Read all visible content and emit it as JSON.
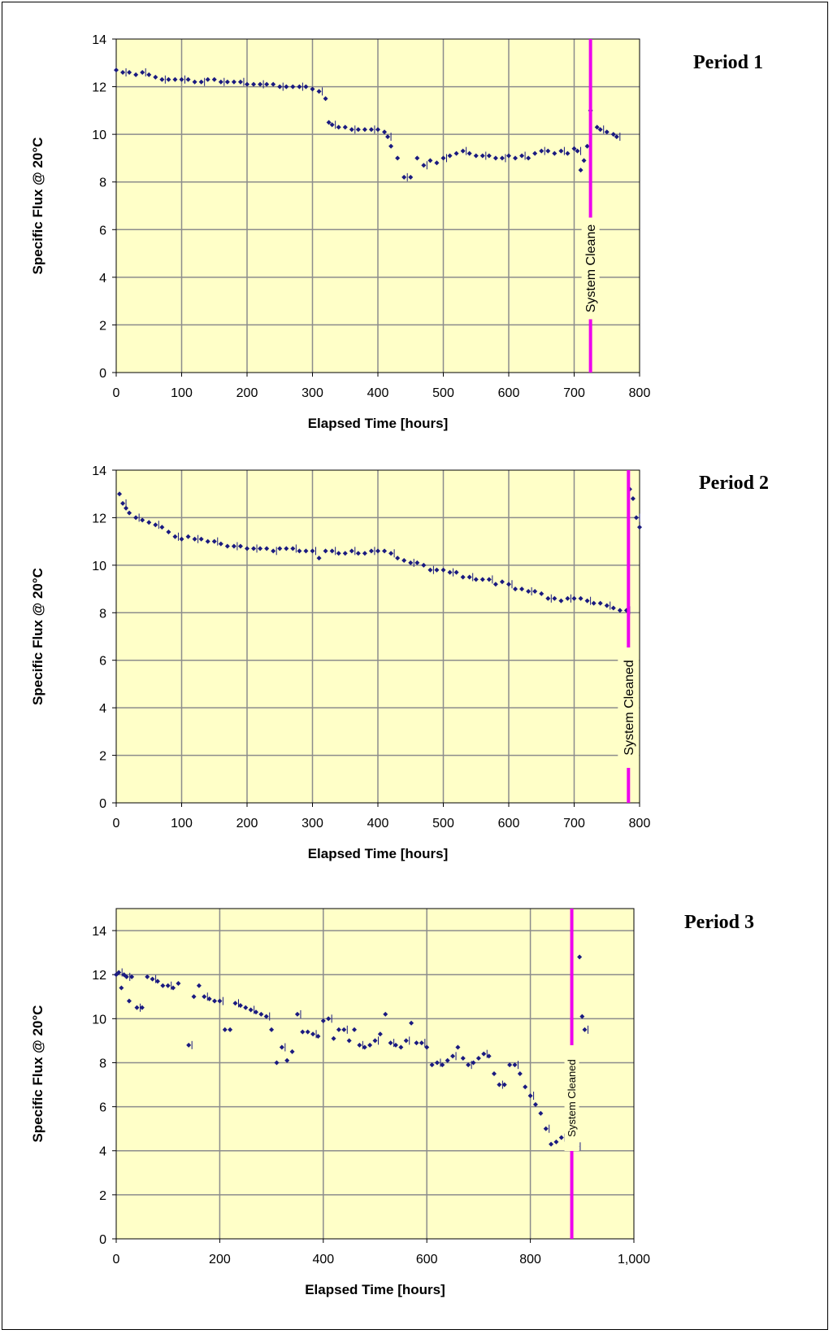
{
  "chart_data": [
    {
      "type": "scatter",
      "period_label": "Period 1",
      "xlabel": "Elapsed Time [hours]",
      "ylabel": "Specific Flux @ 20°C",
      "xlim": [
        0,
        800
      ],
      "ylim": [
        0,
        14
      ],
      "x_ticks": [
        "0",
        "100",
        "200",
        "300",
        "400",
        "500",
        "600",
        "700",
        "800"
      ],
      "y_ticks": [
        "0",
        "2",
        "4",
        "6",
        "8",
        "10",
        "12",
        "14"
      ],
      "grid": true,
      "marker_color": "#1a1a80",
      "background": "#ffffc8",
      "cleaning_event": {
        "x": 725,
        "label": "System Cleane",
        "color": "#ee00ee"
      },
      "series": [
        {
          "x": [
            0,
            10,
            20,
            30,
            40,
            50,
            60,
            70,
            80,
            90,
            100,
            110,
            120,
            130,
            140,
            150,
            160,
            170,
            180,
            190,
            200,
            210,
            220,
            230,
            240,
            250,
            260,
            270,
            280,
            290,
            300,
            310,
            320,
            325,
            330,
            340,
            350,
            360,
            370,
            380,
            390,
            400,
            410,
            415,
            420,
            430,
            440,
            450,
            460,
            470,
            480,
            490,
            500,
            510,
            520,
            530,
            540,
            550,
            560,
            570,
            580,
            590,
            600,
            610,
            620,
            630,
            640,
            650,
            660,
            670,
            680,
            690,
            700,
            705,
            710,
            715,
            720,
            725,
            735,
            740,
            750,
            760,
            765
          ],
          "y": [
            12.7,
            12.6,
            12.6,
            12.5,
            12.6,
            12.5,
            12.4,
            12.3,
            12.3,
            12.3,
            12.3,
            12.3,
            12.2,
            12.2,
            12.3,
            12.3,
            12.2,
            12.2,
            12.2,
            12.2,
            12.1,
            12.1,
            12.1,
            12.1,
            12.1,
            12.0,
            12.0,
            12.0,
            12.0,
            12.0,
            11.9,
            11.8,
            11.5,
            10.5,
            10.4,
            10.3,
            10.3,
            10.2,
            10.2,
            10.2,
            10.2,
            10.2,
            10.1,
            9.9,
            9.5,
            9.0,
            8.2,
            8.2,
            9.0,
            8.7,
            8.9,
            8.8,
            9.0,
            9.1,
            9.2,
            9.3,
            9.2,
            9.1,
            9.1,
            9.1,
            9.0,
            9.0,
            9.1,
            9.0,
            9.1,
            9.0,
            9.2,
            9.3,
            9.3,
            9.2,
            9.3,
            9.2,
            9.4,
            9.3,
            8.5,
            8.9,
            9.5,
            11.0,
            10.3,
            10.2,
            10.1,
            10.0,
            9.9
          ]
        }
      ]
    },
    {
      "type": "scatter",
      "period_label": "Period 2",
      "xlabel": "Elapsed Time [hours]",
      "ylabel": "Specific Flux @ 20°C",
      "xlim": [
        0,
        800
      ],
      "ylim": [
        0,
        14
      ],
      "x_ticks": [
        "0",
        "100",
        "200",
        "300",
        "400",
        "500",
        "600",
        "700",
        "800"
      ],
      "y_ticks": [
        "0",
        "2",
        "4",
        "6",
        "8",
        "10",
        "12",
        "14"
      ],
      "grid": true,
      "marker_color": "#1a1a80",
      "background": "#ffffc8",
      "cleaning_event": {
        "x": 783,
        "label": "System Cleaned",
        "color": "#ee00ee"
      },
      "series": [
        {
          "x": [
            5,
            10,
            15,
            20,
            30,
            40,
            50,
            60,
            70,
            80,
            90,
            100,
            110,
            120,
            130,
            140,
            150,
            160,
            170,
            180,
            190,
            200,
            210,
            220,
            230,
            240,
            250,
            260,
            270,
            280,
            290,
            300,
            310,
            320,
            330,
            340,
            350,
            360,
            370,
            380,
            390,
            400,
            410,
            420,
            430,
            440,
            450,
            460,
            470,
            480,
            490,
            500,
            510,
            520,
            530,
            540,
            550,
            560,
            570,
            580,
            590,
            600,
            610,
            620,
            630,
            640,
            650,
            660,
            670,
            680,
            690,
            700,
            710,
            720,
            730,
            740,
            750,
            760,
            770,
            780,
            785,
            790,
            795,
            800
          ],
          "y": [
            13.0,
            12.6,
            12.4,
            12.2,
            12.0,
            11.9,
            11.8,
            11.7,
            11.6,
            11.4,
            11.2,
            11.1,
            11.2,
            11.1,
            11.1,
            11.0,
            11.0,
            10.9,
            10.8,
            10.8,
            10.8,
            10.7,
            10.7,
            10.7,
            10.7,
            10.6,
            10.7,
            10.7,
            10.7,
            10.6,
            10.6,
            10.6,
            10.3,
            10.6,
            10.6,
            10.5,
            10.5,
            10.6,
            10.5,
            10.5,
            10.6,
            10.6,
            10.6,
            10.5,
            10.3,
            10.2,
            10.1,
            10.1,
            10.0,
            9.8,
            9.8,
            9.8,
            9.7,
            9.7,
            9.5,
            9.5,
            9.4,
            9.4,
            9.4,
            9.2,
            9.3,
            9.2,
            9.0,
            9.0,
            8.9,
            8.9,
            8.8,
            8.6,
            8.6,
            8.5,
            8.6,
            8.6,
            8.6,
            8.5,
            8.4,
            8.4,
            8.3,
            8.2,
            8.1,
            8.1,
            13.2,
            12.8,
            12.0,
            11.6
          ]
        }
      ]
    },
    {
      "type": "scatter",
      "period_label": "Period 3",
      "xlabel": "Elapsed Time [hours]",
      "ylabel": "Specific Flux @ 20°C",
      "xlim": [
        0,
        1000
      ],
      "ylim": [
        0,
        15
      ],
      "x_ticks": [
        "0",
        "200",
        "400",
        "600",
        "800",
        "1,000"
      ],
      "y_ticks": [
        "0",
        "2",
        "4",
        "6",
        "8",
        "10",
        "12",
        "14"
      ],
      "grid": true,
      "marker_color": "#1a1a80",
      "background": "#ffffc8",
      "cleaning_event": {
        "x": 880,
        "label": "System Cleaned",
        "color": "#ee00ee"
      },
      "series": [
        {
          "x": [
            0,
            5,
            10,
            15,
            20,
            25,
            30,
            40,
            50,
            60,
            70,
            80,
            90,
            100,
            110,
            120,
            140,
            150,
            160,
            170,
            180,
            190,
            200,
            210,
            220,
            230,
            240,
            250,
            260,
            270,
            280,
            290,
            300,
            310,
            320,
            330,
            340,
            350,
            360,
            370,
            380,
            390,
            400,
            410,
            420,
            430,
            440,
            450,
            460,
            470,
            480,
            490,
            500,
            510,
            520,
            530,
            540,
            550,
            560,
            570,
            580,
            590,
            600,
            610,
            620,
            630,
            640,
            650,
            660,
            670,
            680,
            690,
            700,
            710,
            720,
            730,
            740,
            750,
            760,
            770,
            780,
            790,
            800,
            810,
            820,
            830,
            840,
            850,
            860,
            870,
            880,
            890,
            895,
            900,
            905
          ],
          "y": [
            12.0,
            12.1,
            11.4,
            12.0,
            11.9,
            10.8,
            11.9,
            10.5,
            10.5,
            11.9,
            11.8,
            11.7,
            11.5,
            11.5,
            11.4,
            11.6,
            8.8,
            11.0,
            11.5,
            11.0,
            10.9,
            10.8,
            10.8,
            9.5,
            9.5,
            10.7,
            10.6,
            10.5,
            10.4,
            10.3,
            10.2,
            10.1,
            9.5,
            8.0,
            8.7,
            8.1,
            8.5,
            10.2,
            9.4,
            9.4,
            9.3,
            9.2,
            9.9,
            10.0,
            9.1,
            9.5,
            9.5,
            9.0,
            9.5,
            8.8,
            8.7,
            8.8,
            9.0,
            9.3,
            10.2,
            8.9,
            8.8,
            8.7,
            9.0,
            9.8,
            8.9,
            8.9,
            8.7,
            7.9,
            8.0,
            7.9,
            8.1,
            8.3,
            8.7,
            8.2,
            7.9,
            8.0,
            8.2,
            8.4,
            8.3,
            7.5,
            7.0,
            7.0,
            7.9,
            7.9,
            7.5,
            6.9,
            6.5,
            6.1,
            5.7,
            5.0,
            4.3,
            4.4,
            4.6,
            4.7,
            4.2,
            4.2,
            12.8,
            10.1,
            9.5
          ]
        }
      ]
    }
  ]
}
